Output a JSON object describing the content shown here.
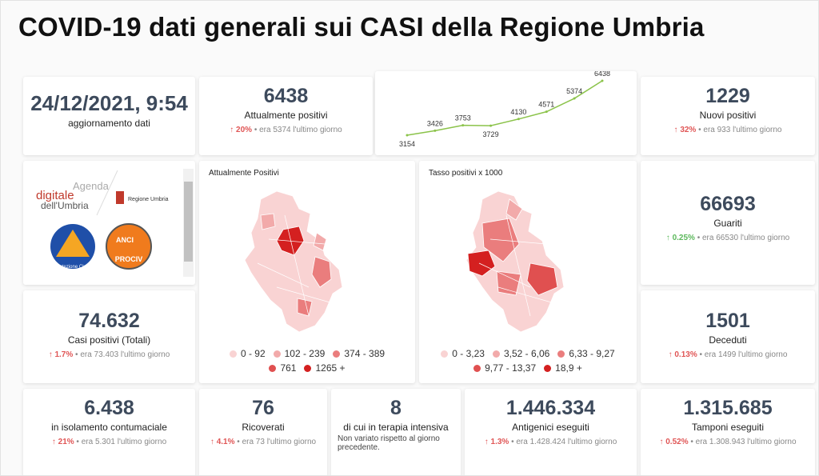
{
  "header": {
    "title": "COVID-19 dati generali sui CASI della Regione Umbria"
  },
  "update": {
    "value": "24/12/2021, 9:54",
    "label": "aggiornamento dati"
  },
  "trend": {
    "values": [
      3154,
      3426,
      3753,
      3729,
      4130,
      4571,
      5374,
      6438
    ],
    "color": "#8bc34a"
  },
  "cards": [
    {
      "value": "6438",
      "label": "Attualmente positivi",
      "change": "20%",
      "note": "era 5374 l'ultimo giorno",
      "color": "#e05555"
    },
    {
      "value": "1229",
      "label": "Nuovi positivi",
      "change": "32%",
      "note": "era 933 l'ultimo giorno",
      "color": "#e05555"
    },
    {
      "value": "66693",
      "label": "Guariti",
      "change": "0.25%",
      "note": "era 66530 l'ultimo giorno",
      "color": "#5cb85c"
    },
    {
      "value": "74.632",
      "label": "Casi positivi (Totali)",
      "change": "1.7%",
      "note": "era 73.403 l'ultimo giorno",
      "color": "#e05555"
    },
    {
      "value": "1501",
      "label": "Deceduti",
      "change": "0.13%",
      "note": "era 1499 l'ultimo giorno",
      "color": "#e05555"
    },
    {
      "value": "6.438",
      "label": "in isolamento contumaciale",
      "change": "21%",
      "note": "era 5.301 l'ultimo giorno",
      "color": "#e05555"
    },
    {
      "value": "76",
      "label": "Ricoverati",
      "change": "4.1%",
      "note": "era 73 l'ultimo giorno",
      "color": "#e05555"
    },
    {
      "value": "8",
      "label": "di cui in terapia intensiva",
      "note": "Non variato rispetto al giorno precedente."
    },
    {
      "value": "1.446.334",
      "label": "Antigenici eseguiti",
      "change": "1.3%",
      "note": "era 1.428.424 l'ultimo giorno",
      "color": "#e05555"
    },
    {
      "value": "1.315.685",
      "label": "Tamponi eseguiti",
      "change": "0.52%",
      "note": "era 1.308.943 l'ultimo giorno",
      "color": "#e05555"
    }
  ],
  "maps": [
    {
      "title": "Attualmente Positivi",
      "legend": [
        {
          "label": "0 - 92",
          "color": "#f9d3d3"
        },
        {
          "label": "102 - 239",
          "color": "#f2aaaa"
        },
        {
          "label": "374 - 389",
          "color": "#ea7d7d"
        },
        {
          "label": "761",
          "color": "#e05050"
        },
        {
          "label": "1265 +",
          "color": "#d42020"
        }
      ]
    },
    {
      "title": "Tasso positivi x 1000",
      "legend": [
        {
          "label": "0 - 3,23",
          "color": "#f9d3d3"
        },
        {
          "label": "3,52 - 6,06",
          "color": "#f2aaaa"
        },
        {
          "label": "6,33 - 9,27",
          "color": "#ea7d7d"
        },
        {
          "label": "9,77 - 13,37",
          "color": "#e05050"
        },
        {
          "label": "18,9 +",
          "color": "#d42020"
        }
      ]
    }
  ],
  "logos": {
    "agenda": "Agenda",
    "digitale": "digitale",
    "umbria": "dell'Umbria",
    "regione": "Regione Umbria",
    "protezione": "Protezione Civile",
    "anci": "ANCI",
    "prociv": "PROCIV"
  }
}
